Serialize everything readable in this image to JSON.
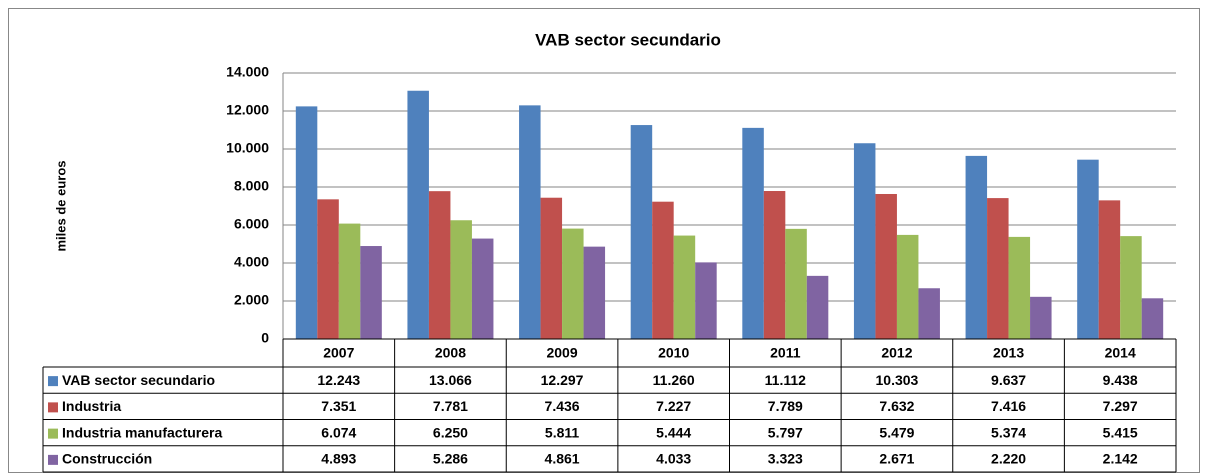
{
  "chart_data": {
    "type": "bar",
    "title": "VAB sector secundario",
    "y_label": "miles de euros",
    "categories": [
      "2007",
      "2008",
      "2009",
      "2010",
      "2011",
      "2012",
      "2013",
      "2014"
    ],
    "series": [
      {
        "name": "VAB sector secundario",
        "color": "#4f81bd",
        "values": [
          12243,
          13066,
          12297,
          11260,
          11112,
          10303,
          9637,
          9438
        ],
        "value_labels": [
          "12.243",
          "13.066",
          "12.297",
          "11.260",
          "11.112",
          "10.303",
          "9.637",
          "9.438"
        ]
      },
      {
        "name": "Industria",
        "color": "#c0504d",
        "values": [
          7351,
          7781,
          7436,
          7227,
          7789,
          7632,
          7416,
          7297
        ],
        "value_labels": [
          "7.351",
          "7.781",
          "7.436",
          "7.227",
          "7.789",
          "7.632",
          "7.416",
          "7.297"
        ]
      },
      {
        "name": "Industria manufacturera",
        "color": "#9bbb59",
        "values": [
          6074,
          6250,
          5811,
          5444,
          5797,
          5479,
          5374,
          5415
        ],
        "value_labels": [
          "6.074",
          "6.250",
          "5.811",
          "5.444",
          "5.797",
          "5.479",
          "5.374",
          "5.415"
        ]
      },
      {
        "name": "Construcción",
        "color": "#8064a2",
        "values": [
          4893,
          5286,
          4861,
          4033,
          3323,
          2671,
          2220,
          2142
        ],
        "value_labels": [
          "4.893",
          "5.286",
          "4.861",
          "4.033",
          "3.323",
          "2.671",
          "2.220",
          "2.142"
        ]
      }
    ],
    "ylim": [
      0,
      14000
    ],
    "yticks": [
      0,
      {
        "value": 2000,
        "label": "2.000"
      },
      {
        "value": 4000,
        "label": "4.000"
      },
      {
        "value": 6000,
        "label": "6.000"
      },
      {
        "value": 8000,
        "label": "8.000"
      },
      {
        "value": 10000,
        "label": "10.000"
      },
      {
        "value": 12000,
        "label": "12.000"
      },
      {
        "value": 14000,
        "label": "14.000"
      }
    ],
    "grid": true
  }
}
